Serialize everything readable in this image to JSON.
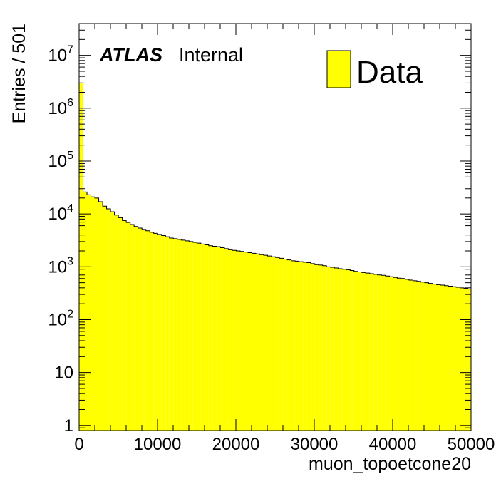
{
  "chart_data": {
    "type": "bar",
    "style": "histogram",
    "xlabel": "muon_topoetcone20",
    "ylabel": "Entries / 501",
    "xlim": [
      0,
      50000
    ],
    "ylim": [
      0.8,
      40000000
    ],
    "y_scale": "log",
    "bin_width": 501,
    "x_ticks": [
      0,
      10000,
      20000,
      30000,
      40000,
      50000
    ],
    "x_tick_labels": [
      "0",
      "10000",
      "20000",
      "30000",
      "40000",
      "50000"
    ],
    "y_ticks": [
      1,
      10,
      100,
      1000,
      10000,
      100000,
      1000000,
      10000000
    ],
    "y_tick_labels": [
      {
        "base": "1",
        "exp": ""
      },
      {
        "base": "10",
        "exp": ""
      },
      {
        "base": "10",
        "exp": "2"
      },
      {
        "base": "10",
        "exp": "3"
      },
      {
        "base": "10",
        "exp": "4"
      },
      {
        "base": "10",
        "exp": "5"
      },
      {
        "base": "10",
        "exp": "6"
      },
      {
        "base": "10",
        "exp": "7"
      }
    ],
    "atlas_label": "ATLAS",
    "atlas_sublabel": "Internal",
    "legend": {
      "label": "Data",
      "position": "top-right"
    },
    "fill_color": "#ffff00",
    "line_color": "#000000",
    "series": [
      {
        "name": "Data",
        "bin_edges_start": 0,
        "values": [
          3000000,
          26000,
          23000,
          21000,
          20000,
          17000,
          14000,
          12500,
          11000,
          9500,
          8500,
          7500,
          6900,
          6300,
          5800,
          5400,
          5100,
          4800,
          4500,
          4300,
          4100,
          3900,
          3700,
          3500,
          3400,
          3300,
          3200,
          3100,
          3000,
          2900,
          2800,
          2700,
          2600,
          2500,
          2450,
          2400,
          2300,
          2200,
          2100,
          2050,
          2000,
          1950,
          1900,
          1850,
          1800,
          1750,
          1700,
          1650,
          1600,
          1550,
          1500,
          1450,
          1400,
          1350,
          1300,
          1280,
          1250,
          1220,
          1200,
          1150,
          1100,
          1080,
          1050,
          1000,
          980,
          950,
          920,
          900,
          880,
          850,
          820,
          800,
          780,
          760,
          740,
          720,
          700,
          690,
          670,
          650,
          630,
          610,
          600,
          580,
          560,
          545,
          530,
          515,
          500,
          485,
          470,
          460,
          450,
          440,
          430,
          420,
          410,
          400,
          390,
          380
        ]
      }
    ]
  }
}
